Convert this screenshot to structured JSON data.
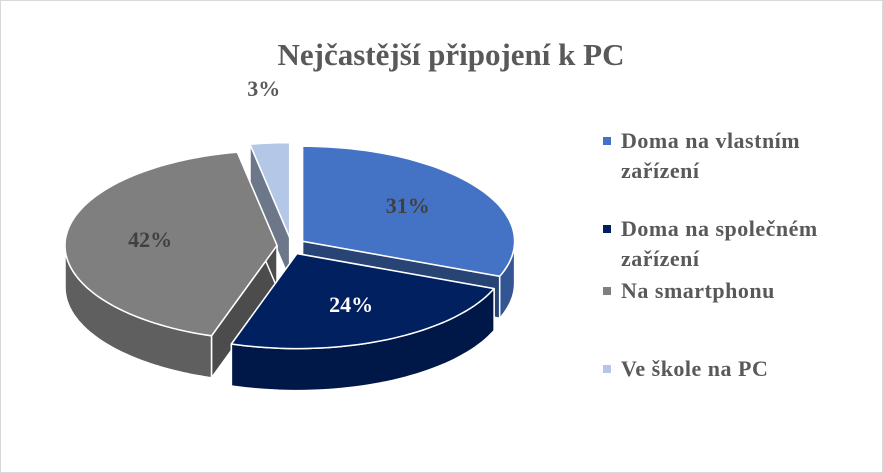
{
  "chart_data": {
    "type": "pie",
    "title": "Nejčastější připojení k PC",
    "categories": [
      "Doma na vlastním zařízení",
      "Doma na společném zařízení",
      "Na smartphonu",
      "Ve škole na PC"
    ],
    "values": [
      31,
      24,
      42,
      3
    ],
    "value_labels": [
      "31%",
      "24%",
      "42%",
      "3%"
    ],
    "colors": [
      "#4472c4",
      "#002060",
      "#7f7f7f",
      "#b4c7e7"
    ],
    "legend": "right"
  }
}
